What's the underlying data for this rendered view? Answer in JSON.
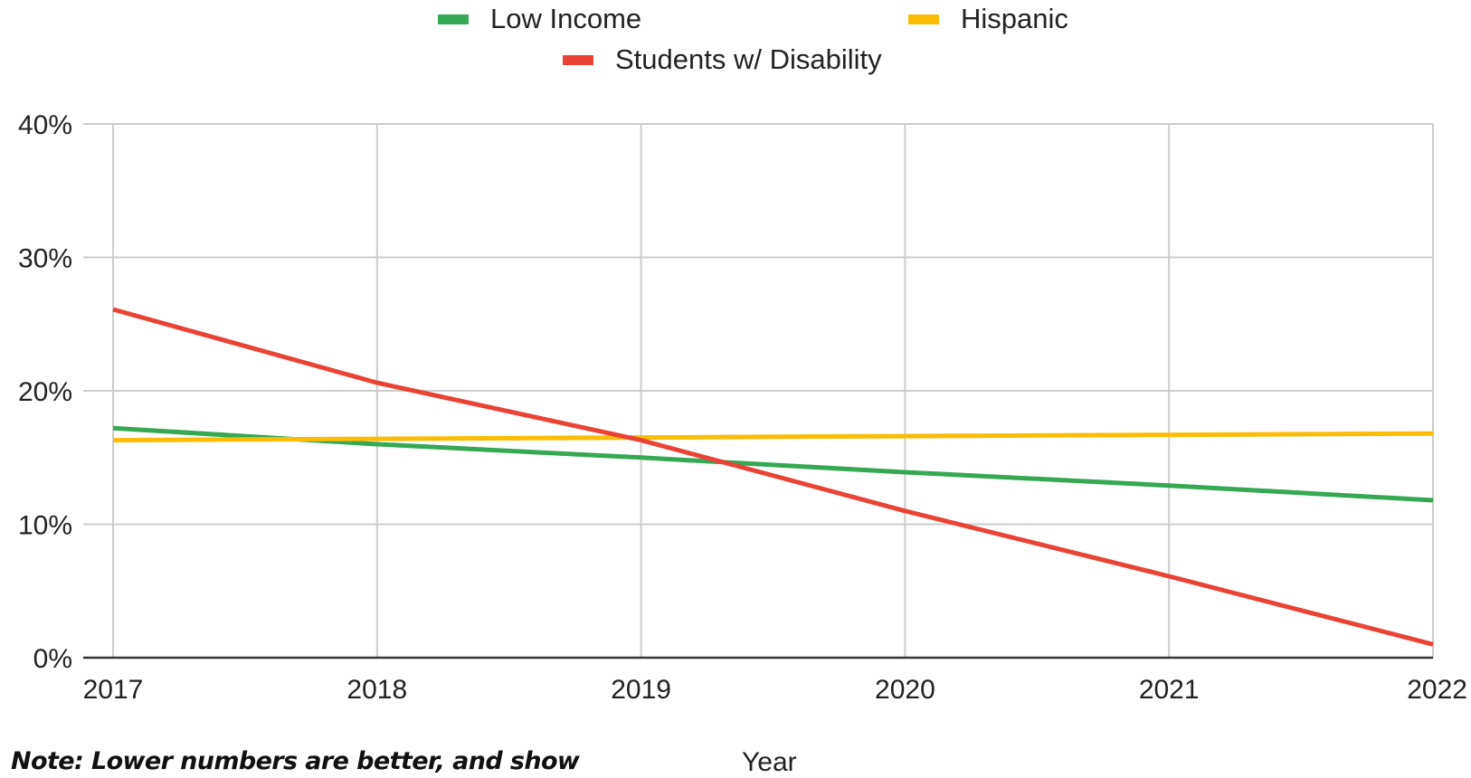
{
  "chart_data": {
    "type": "line",
    "x": [
      2017,
      2018,
      2019,
      2020,
      2021,
      2022
    ],
    "series": [
      {
        "name": "Low Income",
        "color": "#34a853",
        "values": [
          17.2,
          16.0,
          15.0,
          13.9,
          12.9,
          11.8
        ]
      },
      {
        "name": "Hispanic",
        "color": "#fbbc04",
        "values": [
          16.3,
          16.4,
          16.5,
          16.6,
          16.7,
          16.8
        ]
      },
      {
        "name": "Students w/ Disability",
        "color": "#ea4335",
        "values": [
          26.1,
          20.6,
          16.3,
          11.0,
          6.1,
          1.0
        ]
      }
    ],
    "xlabel": "Year",
    "ylabel": "",
    "ylim": [
      0,
      40
    ],
    "y_ticks": [
      0,
      10,
      20,
      30,
      40
    ],
    "y_tick_labels": [
      "0%",
      "10%",
      "20%",
      "30%",
      "40%"
    ],
    "x_tick_labels": [
      "2017",
      "2018",
      "2019",
      "2020",
      "2021",
      "2022"
    ],
    "grid": true,
    "legend_position": "top",
    "note": "Note: Lower numbers are better, and show"
  }
}
